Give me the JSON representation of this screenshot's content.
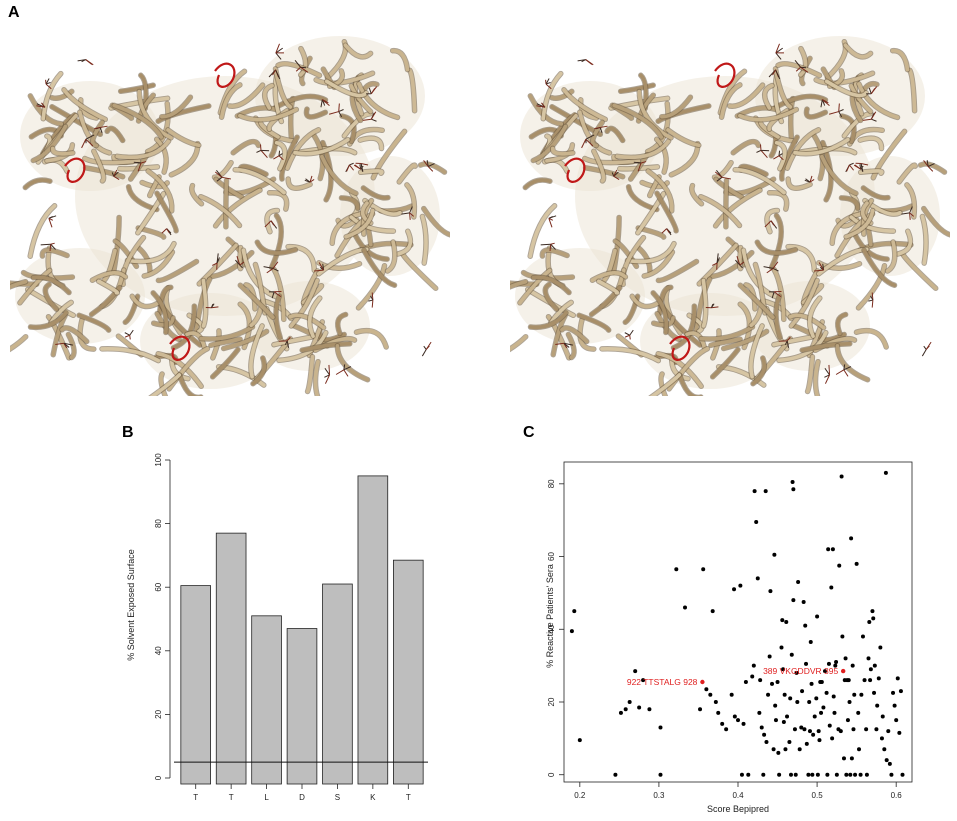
{
  "panels": {
    "a": {
      "letter": "A"
    },
    "b": {
      "letter": "B"
    },
    "c": {
      "letter": "C"
    }
  },
  "chart_data": [
    {
      "panel": "B",
      "type": "bar",
      "categories": [
        "T",
        "T",
        "L",
        "D",
        "S",
        "K",
        "T"
      ],
      "values": [
        60.5,
        77,
        51,
        47,
        61,
        95,
        68.5
      ],
      "ylabel": "% Solvent Exposed Surface",
      "xlabel": "",
      "ylim": [
        0,
        100
      ],
      "yticks": [
        "0",
        "20",
        "40",
        "60",
        "80",
        "100"
      ],
      "reference_line": 5,
      "bar_color": "#bebebe",
      "grid": false
    },
    {
      "panel": "C",
      "type": "scatter",
      "xlabel": "Score Bepipred",
      "ylabel": "% Reactive Patients' Sera",
      "xlim": [
        0.18,
        0.62
      ],
      "ylim": [
        -2,
        86
      ],
      "xticks": [
        "0.2",
        "0.3",
        "0.4",
        "0.5",
        "0.6"
      ],
      "yticks": [
        "0",
        "20",
        "40",
        "60",
        "80"
      ],
      "grid": false,
      "point_color": "#000000",
      "highlight_color": "#e02020",
      "highlights": [
        {
          "label": "922 TTSTALG 928",
          "x": 0.355,
          "y": 25.5
        },
        {
          "label": "389 VKGDDVR 395",
          "x": 0.533,
          "y": 28.5
        }
      ],
      "points": [
        [
          0.19,
          39.5
        ],
        [
          0.193,
          45
        ],
        [
          0.2,
          9.5
        ],
        [
          0.245,
          0
        ],
        [
          0.252,
          17
        ],
        [
          0.258,
          18
        ],
        [
          0.263,
          20
        ],
        [
          0.27,
          28.5
        ],
        [
          0.275,
          18.5
        ],
        [
          0.28,
          26
        ],
        [
          0.288,
          18
        ],
        [
          0.302,
          0
        ],
        [
          0.302,
          13
        ],
        [
          0.322,
          56.5
        ],
        [
          0.333,
          46
        ],
        [
          0.352,
          18
        ],
        [
          0.356,
          56.5
        ],
        [
          0.36,
          23.5
        ],
        [
          0.365,
          22
        ],
        [
          0.368,
          45
        ],
        [
          0.372,
          20
        ],
        [
          0.375,
          17
        ],
        [
          0.38,
          14
        ],
        [
          0.385,
          12.5
        ],
        [
          0.392,
          22
        ],
        [
          0.395,
          51
        ],
        [
          0.396,
          16
        ],
        [
          0.4,
          15
        ],
        [
          0.403,
          52
        ],
        [
          0.405,
          0
        ],
        [
          0.407,
          14
        ],
        [
          0.41,
          25.5
        ],
        [
          0.413,
          0
        ],
        [
          0.418,
          27
        ],
        [
          0.42,
          30
        ],
        [
          0.421,
          78
        ],
        [
          0.423,
          69.5
        ],
        [
          0.425,
          54
        ],
        [
          0.427,
          17
        ],
        [
          0.428,
          26
        ],
        [
          0.43,
          13
        ],
        [
          0.432,
          0
        ],
        [
          0.433,
          11
        ],
        [
          0.435,
          78
        ],
        [
          0.436,
          9
        ],
        [
          0.438,
          22
        ],
        [
          0.44,
          32.5
        ],
        [
          0.441,
          50.5
        ],
        [
          0.443,
          25
        ],
        [
          0.445,
          7
        ],
        [
          0.446,
          60.5
        ],
        [
          0.447,
          19
        ],
        [
          0.448,
          15
        ],
        [
          0.45,
          25.5
        ],
        [
          0.451,
          6
        ],
        [
          0.452,
          0
        ],
        [
          0.455,
          35
        ],
        [
          0.456,
          42.5
        ],
        [
          0.457,
          29
        ],
        [
          0.458,
          14.5
        ],
        [
          0.459,
          22
        ],
        [
          0.46,
          7
        ],
        [
          0.461,
          42
        ],
        [
          0.462,
          16
        ],
        [
          0.465,
          9
        ],
        [
          0.466,
          21
        ],
        [
          0.467,
          0
        ],
        [
          0.468,
          33
        ],
        [
          0.469,
          80.5
        ],
        [
          0.47,
          78.5
        ],
        [
          0.47,
          48
        ],
        [
          0.472,
          12.5
        ],
        [
          0.473,
          0
        ],
        [
          0.474,
          28
        ],
        [
          0.475,
          20
        ],
        [
          0.476,
          53
        ],
        [
          0.478,
          7
        ],
        [
          0.48,
          13
        ],
        [
          0.481,
          23
        ],
        [
          0.483,
          47.5
        ],
        [
          0.484,
          12.5
        ],
        [
          0.485,
          41
        ],
        [
          0.486,
          30.5
        ],
        [
          0.487,
          8.5
        ],
        [
          0.489,
          0
        ],
        [
          0.49,
          20
        ],
        [
          0.491,
          12
        ],
        [
          0.492,
          36.5
        ],
        [
          0.493,
          25
        ],
        [
          0.494,
          0
        ],
        [
          0.495,
          11
        ],
        [
          0.497,
          16
        ],
        [
          0.499,
          21
        ],
        [
          0.5,
          43.5
        ],
        [
          0.501,
          0
        ],
        [
          0.502,
          12
        ],
        [
          0.503,
          9.5
        ],
        [
          0.504,
          25.5
        ],
        [
          0.505,
          17
        ],
        [
          0.506,
          25.5
        ],
        [
          0.508,
          18.5
        ],
        [
          0.51,
          28.5
        ],
        [
          0.512,
          22.5
        ],
        [
          0.513,
          0
        ],
        [
          0.514,
          62
        ],
        [
          0.515,
          30.5
        ],
        [
          0.516,
          13.5
        ],
        [
          0.518,
          51.5
        ],
        [
          0.519,
          10
        ],
        [
          0.52,
          62
        ],
        [
          0.521,
          21.5
        ],
        [
          0.522,
          17
        ],
        [
          0.523,
          30
        ],
        [
          0.524,
          31
        ],
        [
          0.525,
          0
        ],
        [
          0.527,
          12.5
        ],
        [
          0.528,
          57.5
        ],
        [
          0.53,
          12
        ],
        [
          0.531,
          82
        ],
        [
          0.532,
          38
        ],
        [
          0.534,
          4.5
        ],
        [
          0.535,
          26
        ],
        [
          0.536,
          32
        ],
        [
          0.537,
          0
        ],
        [
          0.538,
          26
        ],
        [
          0.539,
          15
        ],
        [
          0.54,
          26
        ],
        [
          0.541,
          20
        ],
        [
          0.542,
          0
        ],
        [
          0.543,
          65
        ],
        [
          0.544,
          4.5
        ],
        [
          0.545,
          30
        ],
        [
          0.546,
          12.5
        ],
        [
          0.547,
          22
        ],
        [
          0.548,
          0
        ],
        [
          0.55,
          58
        ],
        [
          0.552,
          17
        ],
        [
          0.553,
          7
        ],
        [
          0.555,
          0
        ],
        [
          0.556,
          22
        ],
        [
          0.558,
          38
        ],
        [
          0.56,
          26
        ],
        [
          0.562,
          12.5
        ],
        [
          0.563,
          0
        ],
        [
          0.565,
          32
        ],
        [
          0.566,
          42
        ],
        [
          0.567,
          26
        ],
        [
          0.568,
          29
        ],
        [
          0.57,
          45
        ],
        [
          0.571,
          43
        ],
        [
          0.572,
          22.5
        ],
        [
          0.573,
          30
        ],
        [
          0.575,
          12.5
        ],
        [
          0.576,
          19
        ],
        [
          0.578,
          26.5
        ],
        [
          0.58,
          35
        ],
        [
          0.582,
          10
        ],
        [
          0.583,
          16
        ],
        [
          0.585,
          7
        ],
        [
          0.587,
          83
        ],
        [
          0.588,
          4
        ],
        [
          0.59,
          12
        ],
        [
          0.592,
          3
        ],
        [
          0.594,
          0
        ],
        [
          0.596,
          22.5
        ],
        [
          0.598,
          19
        ],
        [
          0.6,
          15
        ],
        [
          0.602,
          26.5
        ],
        [
          0.604,
          11.5
        ],
        [
          0.606,
          23
        ],
        [
          0.608,
          0
        ]
      ]
    }
  ]
}
